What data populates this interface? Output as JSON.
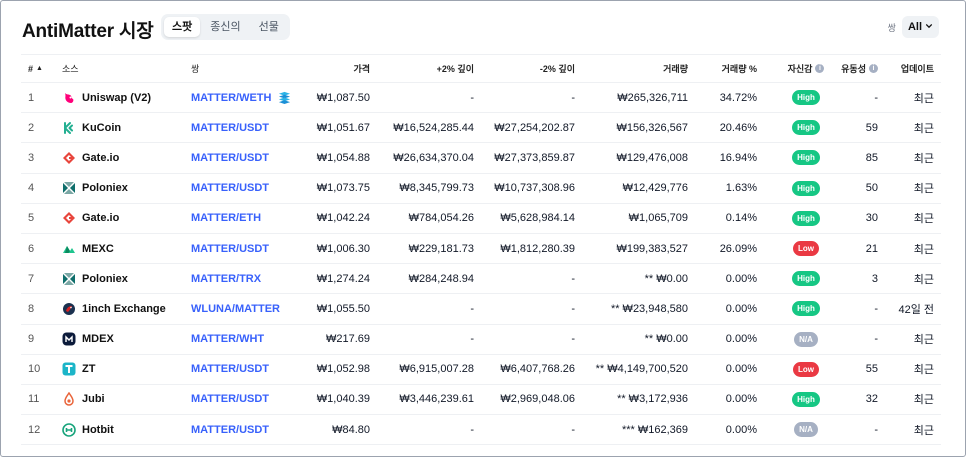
{
  "title": "AntiMatter 시장",
  "tabs": [
    "스팟",
    "종신의",
    "선물"
  ],
  "pair_filter": {
    "label": "쌍",
    "value": "All"
  },
  "columns": {
    "rank": "#",
    "source": "소스",
    "pair": "쌍",
    "price": "가격",
    "plus2": "+2% 깊이",
    "minus2": "-2% 깊이",
    "volume": "거래량",
    "volume_pct": "거래량 %",
    "confidence": "자신감",
    "liquidity": "유동성",
    "updated": "업데이트"
  },
  "colors": {
    "accent": "#3861fb",
    "high": "#16c784",
    "low": "#ea3943",
    "na": "#a6b0c3"
  },
  "rows": [
    {
      "rank": "1",
      "source": "Uniswap (V2)",
      "icon": "uniswap-icon",
      "pair": "MATTER/WETH",
      "price": "₩1,087.50",
      "plus2": "-",
      "minus2": "-",
      "volume": "₩265,326,711",
      "volume_pct": "34.72%",
      "confidence": "High",
      "liquidity": "-",
      "updated": "최근"
    },
    {
      "rank": "2",
      "source": "KuCoin",
      "icon": "kucoin-icon",
      "pair": "MATTER/USDT",
      "price": "₩1,051.67",
      "plus2": "₩16,524,285.44",
      "minus2": "₩27,254,202.87",
      "volume": "₩156,326,567",
      "volume_pct": "20.46%",
      "confidence": "High",
      "liquidity": "59",
      "updated": "최근"
    },
    {
      "rank": "3",
      "source": "Gate.io",
      "icon": "gateio-icon",
      "pair": "MATTER/USDT",
      "price": "₩1,054.88",
      "plus2": "₩26,634,370.04",
      "minus2": "₩27,373,859.87",
      "volume": "₩129,476,008",
      "volume_pct": "16.94%",
      "confidence": "High",
      "liquidity": "85",
      "updated": "최근"
    },
    {
      "rank": "4",
      "source": "Poloniex",
      "icon": "poloniex-icon",
      "pair": "MATTER/USDT",
      "price": "₩1,073.75",
      "plus2": "₩8,345,799.73",
      "minus2": "₩10,737,308.96",
      "volume": "₩12,429,776",
      "volume_pct": "1.63%",
      "confidence": "High",
      "liquidity": "50",
      "updated": "최근"
    },
    {
      "rank": "5",
      "source": "Gate.io",
      "icon": "gateio-icon",
      "pair": "MATTER/ETH",
      "price": "₩1,042.24",
      "plus2": "₩784,054.26",
      "minus2": "₩5,628,984.14",
      "volume": "₩1,065,709",
      "volume_pct": "0.14%",
      "confidence": "High",
      "liquidity": "30",
      "updated": "최근"
    },
    {
      "rank": "6",
      "source": "MEXC",
      "icon": "mexc-icon",
      "pair": "MATTER/USDT",
      "price": "₩1,006.30",
      "plus2": "₩229,181.73",
      "minus2": "₩1,812,280.39",
      "volume": "₩199,383,527",
      "volume_pct": "26.09%",
      "confidence": "Low",
      "liquidity": "21",
      "updated": "최근"
    },
    {
      "rank": "7",
      "source": "Poloniex",
      "icon": "poloniex-icon",
      "pair": "MATTER/TRX",
      "price": "₩1,274.24",
      "plus2": "₩284,248.94",
      "minus2": "-",
      "volume": "** ₩0.00",
      "volume_pct": "0.00%",
      "confidence": "High",
      "liquidity": "3",
      "updated": "최근"
    },
    {
      "rank": "8",
      "source": "1inch Exchange",
      "icon": "1inch-icon",
      "pair": "WLUNA/MATTER",
      "price": "₩1,055.50",
      "plus2": "-",
      "minus2": "-",
      "volume": "** ₩23,948,580",
      "volume_pct": "0.00%",
      "confidence": "High",
      "liquidity": "-",
      "updated": "42일 전"
    },
    {
      "rank": "9",
      "source": "MDEX",
      "icon": "mdex-icon",
      "pair": "MATTER/WHT",
      "price": "₩217.69",
      "plus2": "-",
      "minus2": "-",
      "volume": "** ₩0.00",
      "volume_pct": "0.00%",
      "confidence": "N/A",
      "liquidity": "-",
      "updated": "최근"
    },
    {
      "rank": "10",
      "source": "ZT",
      "icon": "zt-icon",
      "pair": "MATTER/USDT",
      "price": "₩1,052.98",
      "plus2": "₩6,915,007.28",
      "minus2": "₩6,407,768.26",
      "volume": "** ₩4,149,700,520",
      "volume_pct": "0.00%",
      "confidence": "Low",
      "liquidity": "55",
      "updated": "최근"
    },
    {
      "rank": "11",
      "source": "Jubi",
      "icon": "jubi-icon",
      "pair": "MATTER/USDT",
      "price": "₩1,040.39",
      "plus2": "₩3,446,239.61",
      "minus2": "₩2,969,048.06",
      "volume": "** ₩3,172,936",
      "volume_pct": "0.00%",
      "confidence": "High",
      "liquidity": "32",
      "updated": "최근"
    },
    {
      "rank": "12",
      "source": "Hotbit",
      "icon": "hotbit-icon",
      "pair": "MATTER/USDT",
      "price": "₩84.80",
      "plus2": "-",
      "minus2": "-",
      "volume": "*** ₩162,369",
      "volume_pct": "0.00%",
      "confidence": "N/A",
      "liquidity": "-",
      "updated": "최근"
    }
  ]
}
